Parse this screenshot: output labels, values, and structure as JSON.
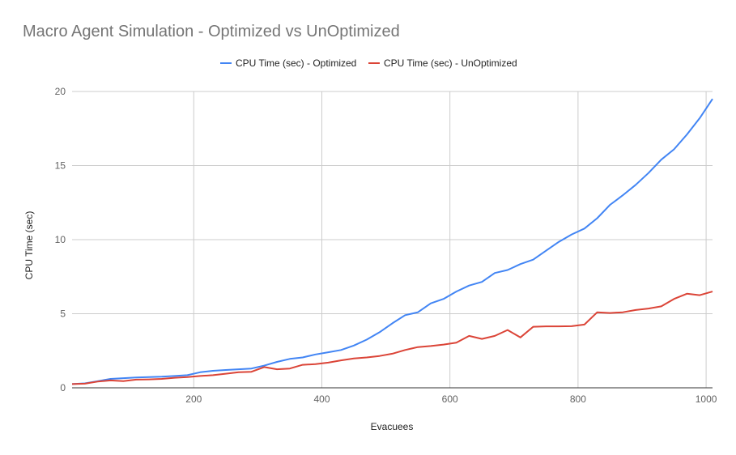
{
  "chart_data": {
    "type": "line",
    "title": "Macro Agent Simulation - Optimized vs UnOptimized",
    "xlabel": "Evacuees",
    "ylabel": "CPU Time (sec)",
    "xlim": [
      10,
      1010
    ],
    "ylim": [
      0,
      20
    ],
    "x_ticks": [
      200,
      400,
      600,
      800,
      1000
    ],
    "y_ticks": [
      0,
      5,
      10,
      15,
      20
    ],
    "grid": true,
    "legend_position": "top",
    "x": [
      10,
      30,
      50,
      70,
      90,
      110,
      130,
      150,
      170,
      190,
      210,
      230,
      250,
      270,
      290,
      310,
      330,
      350,
      370,
      390,
      410,
      430,
      450,
      470,
      490,
      510,
      530,
      550,
      570,
      590,
      610,
      630,
      650,
      670,
      690,
      710,
      730,
      750,
      770,
      790,
      810,
      830,
      850,
      870,
      890,
      910,
      930,
      950,
      970,
      990,
      1010
    ],
    "series": [
      {
        "name": "CPU Time (sec) - Optimized",
        "color": "#4285f4",
        "values": [
          0.25,
          0.3,
          0.45,
          0.6,
          0.65,
          0.7,
          0.72,
          0.75,
          0.8,
          0.85,
          1.05,
          1.15,
          1.2,
          1.25,
          1.3,
          1.5,
          1.75,
          1.95,
          2.05,
          2.25,
          2.4,
          2.55,
          2.85,
          3.25,
          3.75,
          4.35,
          4.9,
          5.1,
          5.7,
          6.0,
          6.5,
          6.9,
          7.15,
          7.75,
          7.95,
          8.35,
          8.65,
          9.25,
          9.85,
          10.35,
          10.75,
          11.45,
          12.35,
          13.0,
          13.7,
          14.5,
          15.4,
          16.1,
          17.1,
          18.2,
          19.5
        ]
      },
      {
        "name": "CPU Time (sec) - UnOptimized",
        "color": "#db4437",
        "values": [
          0.25,
          0.28,
          0.42,
          0.5,
          0.45,
          0.55,
          0.57,
          0.6,
          0.68,
          0.72,
          0.8,
          0.85,
          0.95,
          1.05,
          1.08,
          1.4,
          1.25,
          1.3,
          1.55,
          1.6,
          1.7,
          1.85,
          1.98,
          2.05,
          2.15,
          2.3,
          2.55,
          2.75,
          2.82,
          2.92,
          3.05,
          3.5,
          3.3,
          3.5,
          3.9,
          3.4,
          4.12,
          4.15,
          4.15,
          4.16,
          4.27,
          5.1,
          5.05,
          5.1,
          5.25,
          5.35,
          5.5,
          6.0,
          6.35,
          6.25,
          6.5
        ]
      }
    ]
  }
}
